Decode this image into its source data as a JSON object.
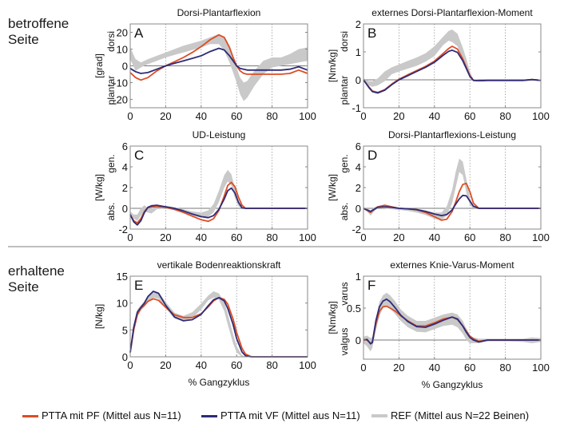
{
  "section_labels": {
    "affected": [
      "betroffene",
      "Seite"
    ],
    "intact": [
      "erhaltene",
      "Seite"
    ]
  },
  "colors": {
    "ptta_pf": "#dd4d24",
    "ptta_vf": "#2e2b78",
    "ref_band": "#c9c9c9",
    "zero_line": "#777777",
    "axis": "#888888",
    "separator": "#aaaaaa"
  },
  "legend": [
    {
      "key": "ptta_pf",
      "label": "PTTA mit PF (Mittel aus N=11)"
    },
    {
      "key": "ptta_vf",
      "label": "PTTA mit VF (Mittel aus N=11)"
    },
    {
      "key": "ref",
      "label": "REF (Mittel aus N=22 Beinen)"
    }
  ],
  "chart_data": [
    {
      "id": "A",
      "type": "line",
      "title": "Dorsi-Plantarflexion",
      "ylabel": "[grad]",
      "ylabel_top": "dorsi",
      "ylabel_bottom": "plantar",
      "xlabel": "",
      "xlim": [
        0,
        100
      ],
      "ylim": [
        -25,
        25
      ],
      "xticks": [
        0,
        20,
        40,
        60,
        80,
        100
      ],
      "yticks": [
        -20,
        -10,
        0,
        10,
        20
      ],
      "x": [
        0,
        3,
        6,
        10,
        15,
        20,
        25,
        30,
        35,
        40,
        45,
        50,
        53,
        56,
        58,
        60,
        62,
        64,
        66,
        70,
        75,
        80,
        85,
        90,
        95,
        100
      ],
      "series": [
        {
          "name": "PTTA mit PF",
          "key": "ptta_pf",
          "values": [
            -4,
            -7,
            -8.5,
            -7,
            -3,
            0,
            2.5,
            5,
            8,
            11.5,
            15.5,
            18.5,
            17,
            11,
            5,
            0,
            -3,
            -4.5,
            -5,
            -5,
            -5,
            -5,
            -5,
            -4.5,
            -2.5,
            -4.5
          ]
        },
        {
          "name": "PTTA mit VF",
          "key": "ptta_vf",
          "values": [
            -1.5,
            -3.5,
            -4.5,
            -4,
            -2,
            0,
            1.5,
            3,
            4.5,
            6,
            8.5,
            10.5,
            9.5,
            6,
            3,
            0,
            -1.5,
            -2,
            -2.5,
            -2.5,
            -2.5,
            -2.5,
            -2.5,
            -2,
            -0.5,
            -2.5
          ]
        },
        {
          "name": "REF",
          "key": "ref",
          "band": true,
          "lower": [
            4,
            -3,
            -1,
            1,
            3,
            5,
            6.5,
            8,
            9.5,
            11,
            13,
            13,
            9,
            2,
            -4,
            -10,
            -17,
            -21,
            -19,
            -12,
            -5,
            -1,
            0,
            1,
            2,
            3
          ],
          "upper": [
            11,
            4,
            2,
            4,
            6,
            8,
            10,
            12,
            13.5,
            15,
            17,
            19,
            17,
            11,
            5,
            -1,
            -7,
            -10,
            -9,
            -3,
            3,
            5,
            5,
            7,
            10,
            11
          ]
        }
      ]
    },
    {
      "id": "B",
      "type": "line",
      "title": "externes Dorsi-Plantarflexion-Moment",
      "ylabel": "[Nm/kg]",
      "ylabel_top": "dorsi",
      "ylabel_bottom": "plantar",
      "xlabel": "",
      "xlim": [
        0,
        100
      ],
      "ylim": [
        -1,
        2
      ],
      "xticks": [
        0,
        20,
        40,
        60,
        80,
        100
      ],
      "yticks": [
        -1,
        0,
        1,
        2
      ],
      "x": [
        0,
        3,
        5,
        8,
        12,
        16,
        20,
        25,
        30,
        35,
        40,
        45,
        48,
        50,
        53,
        56,
        58,
        60,
        62,
        65,
        70,
        80,
        90,
        95,
        100
      ],
      "series": [
        {
          "name": "PTTA mit PF",
          "key": "ptta_pf",
          "values": [
            0,
            -0.25,
            -0.4,
            -0.45,
            -0.35,
            -0.15,
            0.02,
            0.18,
            0.33,
            0.48,
            0.67,
            0.95,
            1.12,
            1.2,
            1.1,
            0.75,
            0.45,
            0.15,
            -0.02,
            -0.03,
            -0.02,
            -0.02,
            -0.02,
            0.01,
            -0.02
          ]
        },
        {
          "name": "PTTA mit VF",
          "key": "ptta_vf",
          "values": [
            0,
            -0.27,
            -0.42,
            -0.47,
            -0.37,
            -0.17,
            0.0,
            0.15,
            0.3,
            0.45,
            0.63,
            0.88,
            1.02,
            1.06,
            0.98,
            0.68,
            0.4,
            0.12,
            -0.02,
            -0.03,
            -0.02,
            -0.02,
            -0.02,
            0.01,
            -0.02
          ]
        },
        {
          "name": "REF",
          "key": "ref",
          "band": true,
          "lower": [
            0,
            -0.2,
            -0.25,
            -0.2,
            -0.05,
            0.2,
            0.3,
            0.4,
            0.5,
            0.65,
            0.85,
            1.25,
            1.4,
            1.35,
            1.2,
            0.75,
            0.4,
            0.1,
            -0.02,
            -0.03,
            -0.02,
            -0.02,
            -0.02,
            0.0,
            -0.02
          ]
        },
        {
          "name": "REF-upper",
          "key": "ref_upper",
          "hidden": true,
          "values": [
            0.05,
            -0.05,
            -0.05,
            0.05,
            0.3,
            0.45,
            0.55,
            0.68,
            0.8,
            0.95,
            1.2,
            1.55,
            1.75,
            1.8,
            1.65,
            1.15,
            0.75,
            0.3,
            0.02,
            0.0,
            0.0,
            0.0,
            0.0,
            0.02,
            0.0
          ]
        }
      ]
    },
    {
      "id": "C",
      "type": "line",
      "title": "UD-Leistung",
      "ylabel": "[W/kg]",
      "ylabel_top": "gen.",
      "ylabel_bottom": "abs.",
      "xlabel": "",
      "xlim": [
        0,
        100
      ],
      "ylim": [
        -2,
        6
      ],
      "xticks": [
        0,
        20,
        40,
        60,
        80,
        100
      ],
      "yticks": [
        -2,
        0,
        2,
        4,
        6
      ],
      "x": [
        0,
        2,
        4,
        6,
        8,
        10,
        12,
        15,
        20,
        25,
        30,
        35,
        40,
        44,
        47,
        50,
        53,
        55,
        57,
        59,
        61,
        63,
        65,
        70,
        80,
        90,
        100
      ],
      "series": [
        {
          "name": "PTTA mit PF",
          "key": "ptta_pf",
          "values": [
            -0.6,
            -1.2,
            -1.4,
            -1.0,
            -0.3,
            0.1,
            0.15,
            0.15,
            0.1,
            -0.1,
            -0.4,
            -0.75,
            -1.1,
            -1.25,
            -1.0,
            -0.2,
            1.2,
            2.2,
            2.5,
            2.1,
            1.1,
            0.3,
            0.0,
            0.0,
            0.0,
            0.0,
            0.0
          ]
        },
        {
          "name": "PTTA mit VF",
          "key": "ptta_vf",
          "values": [
            -0.6,
            -1.3,
            -1.6,
            -1.2,
            -0.4,
            0.1,
            0.25,
            0.3,
            0.15,
            0.0,
            -0.25,
            -0.55,
            -0.8,
            -0.9,
            -0.7,
            -0.1,
            0.9,
            1.7,
            1.95,
            1.5,
            0.6,
            0.05,
            0.0,
            0.0,
            0.0,
            0.0,
            0.0
          ]
        },
        {
          "name": "REF",
          "key": "ref",
          "band": true,
          "lower": [
            -0.5,
            -1.0,
            -1.2,
            -0.7,
            -0.3,
            -0.4,
            -0.5,
            -0.1,
            0.0,
            -0.2,
            -0.45,
            -0.7,
            -0.9,
            -0.8,
            -0.4,
            0.6,
            2.0,
            2.6,
            2.2,
            1.0,
            0.2,
            0.0,
            0.0,
            0.0,
            0.0,
            0.0,
            0.0
          ]
        },
        {
          "name": "REF-upper",
          "key": "ref_upper",
          "hidden": true,
          "values": [
            -0.3,
            -0.6,
            -0.6,
            0.0,
            0.3,
            0.0,
            0.0,
            0.2,
            0.25,
            0.1,
            -0.1,
            -0.3,
            -0.4,
            -0.2,
            0.4,
            1.7,
            3.2,
            3.7,
            3.3,
            2.0,
            0.8,
            0.1,
            0.0,
            0.0,
            0.0,
            0.0,
            0.0
          ]
        }
      ]
    },
    {
      "id": "D",
      "type": "line",
      "title": "Dorsi-Plantarflexions-Leistung",
      "ylabel": "[W/kg]",
      "ylabel_top": "gen.",
      "ylabel_bottom": "abs.",
      "xlabel": "",
      "xlim": [
        0,
        100
      ],
      "ylim": [
        -2,
        6
      ],
      "xticks": [
        0,
        20,
        40,
        60,
        80,
        100
      ],
      "yticks": [
        -2,
        0,
        2,
        4,
        6
      ],
      "x": [
        0,
        2,
        4,
        6,
        8,
        12,
        16,
        20,
        25,
        30,
        35,
        40,
        44,
        47,
        50,
        52,
        54,
        56,
        58,
        60,
        62,
        65,
        70,
        80,
        90,
        100
      ],
      "series": [
        {
          "name": "PTTA mit PF",
          "key": "ptta_pf",
          "values": [
            0.0,
            -0.2,
            -0.4,
            -0.1,
            0.15,
            0.3,
            0.15,
            0.0,
            -0.05,
            -0.15,
            -0.4,
            -0.8,
            -1.15,
            -1.05,
            -0.3,
            0.6,
            1.6,
            2.3,
            2.4,
            1.6,
            0.5,
            0.0,
            0.0,
            0.0,
            0.0,
            0.0
          ]
        },
        {
          "name": "PTTA mit VF",
          "key": "ptta_vf",
          "values": [
            0.0,
            -0.15,
            -0.3,
            -0.1,
            0.1,
            0.15,
            0.1,
            0.0,
            -0.05,
            -0.12,
            -0.3,
            -0.55,
            -0.7,
            -0.6,
            -0.15,
            0.4,
            0.9,
            1.25,
            1.2,
            0.7,
            0.2,
            0.0,
            0.0,
            0.0,
            0.0,
            0.0
          ]
        },
        {
          "name": "REF",
          "key": "ref",
          "band": true,
          "lower": [
            0.0,
            -0.3,
            -0.7,
            -0.3,
            0.0,
            0.0,
            -0.1,
            -0.15,
            -0.25,
            -0.4,
            -0.65,
            -1.0,
            -1.1,
            -0.7,
            0.5,
            2.0,
            3.5,
            3.2,
            1.5,
            0.3,
            0.0,
            0.0,
            0.0,
            0.0,
            0.0,
            0.0
          ]
        },
        {
          "name": "REF-upper",
          "key": "ref_upper",
          "hidden": true,
          "values": [
            0.1,
            0.0,
            -0.2,
            0.1,
            0.2,
            0.15,
            0.1,
            0.05,
            0.0,
            -0.05,
            -0.2,
            -0.4,
            -0.4,
            0.2,
            1.8,
            3.5,
            4.8,
            4.5,
            2.8,
            1.0,
            0.2,
            0.0,
            0.0,
            0.0,
            0.0,
            0.0
          ]
        }
      ]
    },
    {
      "id": "E",
      "type": "line",
      "title": "vertikale Bodenreaktionskraft",
      "ylabel": "[N/kg]",
      "ylabel_top": "",
      "ylabel_bottom": "",
      "xlabel": "% Gangzyklus",
      "xlim": [
        0,
        100
      ],
      "ylim": [
        0,
        15
      ],
      "xticks": [
        0,
        20,
        40,
        60,
        80,
        100
      ],
      "yticks": [
        0,
        5,
        10,
        15
      ],
      "x": [
        0,
        2,
        4,
        6,
        8,
        10,
        13,
        16,
        20,
        25,
        30,
        35,
        40,
        44,
        47,
        50,
        53,
        55,
        58,
        60,
        63,
        65,
        68,
        70,
        80,
        90,
        100
      ],
      "series": [
        {
          "name": "PTTA mit PF",
          "key": "ptta_pf",
          "values": [
            0.8,
            5,
            7.8,
            9,
            9.6,
            10.3,
            10.8,
            10.5,
            9.2,
            7.8,
            7.3,
            7.3,
            8.0,
            9.3,
            10.4,
            11.0,
            10.7,
            9.8,
            7.0,
            4.5,
            1.6,
            0.5,
            0.05,
            0.0,
            0.0,
            0.0,
            0.0
          ]
        },
        {
          "name": "PTTA mit VF",
          "key": "ptta_vf",
          "values": [
            0.8,
            5.5,
            8.3,
            9.2,
            10.0,
            11.2,
            12.2,
            11.8,
            9.6,
            7.4,
            6.7,
            6.9,
            7.9,
            9.5,
            10.6,
            11.0,
            10.4,
            9.0,
            6.0,
            3.4,
            0.9,
            0.2,
            0.0,
            0.0,
            0.0,
            0.0,
            0.0
          ]
        },
        {
          "name": "REF",
          "key": "ref",
          "band": true,
          "lower": [
            0.5,
            4.5,
            7.5,
            8.6,
            9.3,
            10.2,
            11.0,
            10.8,
            9.0,
            7.1,
            6.6,
            7.2,
            8.8,
            10.5,
            11.0,
            10.6,
            8.5,
            6.0,
            2.5,
            0.8,
            0.0,
            0.0,
            0.0,
            0.0,
            0.0,
            0.0,
            0.0
          ]
        },
        {
          "name": "REF-upper",
          "key": "ref_upper",
          "hidden": true,
          "values": [
            1.2,
            5.8,
            8.8,
            9.6,
            10.4,
            11.5,
            12.3,
            12.0,
            10.2,
            8.2,
            7.6,
            8.3,
            9.9,
            11.4,
            12.2,
            11.8,
            10.2,
            8.0,
            4.2,
            2.0,
            0.3,
            0.0,
            0.0,
            0.0,
            0.0,
            0.0,
            0.0
          ]
        }
      ]
    },
    {
      "id": "F",
      "type": "line",
      "title": "externes Knie-Varus-Moment",
      "ylabel": "[Nm/kg]",
      "ylabel_top": "varus",
      "ylabel_bottom": "valgus",
      "xlabel": "% Gangzyklus",
      "xlim": [
        0,
        100
      ],
      "ylim": [
        -0.3,
        1
      ],
      "xticks": [
        0,
        20,
        40,
        60,
        80,
        100
      ],
      "yticks": [
        0,
        0.5,
        1
      ],
      "x": [
        0,
        2,
        4,
        5,
        7,
        9,
        11,
        13,
        15,
        18,
        21,
        25,
        30,
        35,
        40,
        45,
        50,
        53,
        56,
        58,
        60,
        62,
        65,
        70,
        80,
        90,
        95,
        100
      ],
      "series": [
        {
          "name": "PTTA mit PF",
          "key": "ptta_pf",
          "values": [
            0.0,
            0.0,
            -0.05,
            -0.03,
            0.25,
            0.45,
            0.52,
            0.53,
            0.5,
            0.45,
            0.38,
            0.3,
            0.22,
            0.22,
            0.27,
            0.33,
            0.36,
            0.32,
            0.22,
            0.14,
            0.06,
            0.02,
            -0.02,
            0.0,
            0.0,
            0.0,
            0.0,
            0.0
          ]
        },
        {
          "name": "PTTA mit VF",
          "key": "ptta_vf",
          "values": [
            0.0,
            0.01,
            -0.06,
            -0.04,
            0.3,
            0.52,
            0.61,
            0.64,
            0.6,
            0.5,
            0.39,
            0.29,
            0.21,
            0.2,
            0.25,
            0.31,
            0.36,
            0.33,
            0.22,
            0.12,
            0.04,
            0.0,
            -0.03,
            0.0,
            0.0,
            0.0,
            0.0,
            0.0
          ]
        },
        {
          "name": "REF",
          "key": "ref",
          "band": true,
          "lower": [
            -0.05,
            -0.1,
            -0.18,
            -0.12,
            0.15,
            0.38,
            0.5,
            0.55,
            0.5,
            0.4,
            0.3,
            0.2,
            0.13,
            0.12,
            0.17,
            0.22,
            0.24,
            0.2,
            0.1,
            0.0,
            -0.05,
            -0.05,
            -0.05,
            -0.02,
            -0.02,
            -0.03,
            -0.05,
            -0.03
          ]
        },
        {
          "name": "REF-upper",
          "key": "ref_upper",
          "hidden": true,
          "values": [
            0.05,
            0.07,
            0.03,
            0.05,
            0.35,
            0.6,
            0.7,
            0.74,
            0.7,
            0.6,
            0.48,
            0.38,
            0.3,
            0.3,
            0.35,
            0.4,
            0.43,
            0.4,
            0.3,
            0.18,
            0.08,
            0.04,
            0.02,
            0.02,
            0.02,
            0.02,
            0.04,
            0.03
          ]
        }
      ]
    }
  ]
}
